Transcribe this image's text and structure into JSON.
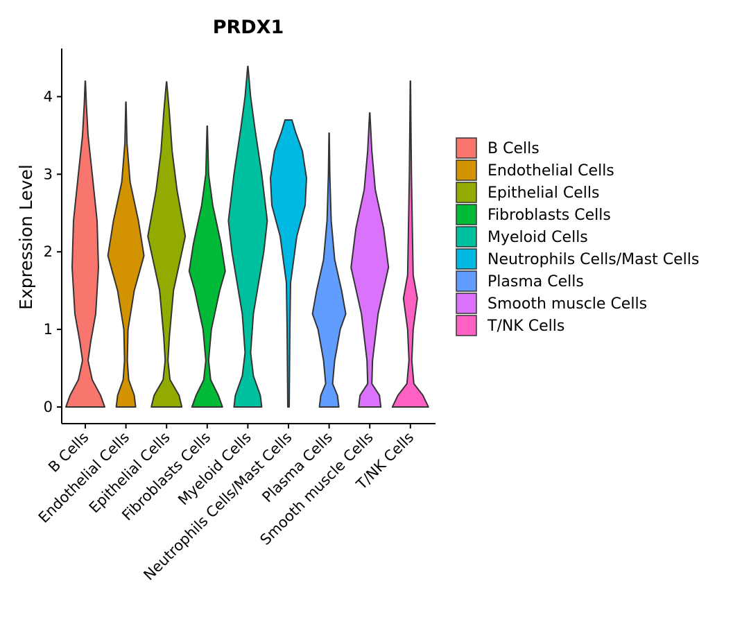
{
  "chart_data": {
    "type": "violin",
    "title": "PRDX1",
    "xlabel": "",
    "ylabel": "Expression Level",
    "ylim": [
      -0.2,
      4.6
    ],
    "yticks": [
      "0",
      "1",
      "2",
      "3",
      "4"
    ],
    "categories": [
      "B Cells",
      "Endothelial Cells",
      "Epithelial Cells",
      "Fibroblasts Cells",
      "Myeloid Cells",
      "Neutrophils Cells/Mast Cells",
      "Plasma Cells",
      "Smooth muscle Cells",
      "T/NK Cells"
    ],
    "colors": [
      "#F8766D",
      "#D39200",
      "#93AA00",
      "#00BA38",
      "#00C19F",
      "#00B9E3",
      "#619CFF",
      "#DB72FB",
      "#FF61C3"
    ],
    "max_values": [
      4.2,
      3.93,
      4.19,
      3.62,
      4.39,
      3.7,
      3.53,
      3.79,
      4.2
    ],
    "legend": {
      "position": "right",
      "entries": [
        "B Cells",
        "Endothelial Cells",
        "Epithelial Cells",
        "Fibroblasts Cells",
        "Myeloid Cells",
        "Neutrophils Cells/Mast Cells",
        "Plasma Cells",
        "Smooth muscle Cells",
        "T/NK Cells"
      ]
    },
    "grid": false
  }
}
